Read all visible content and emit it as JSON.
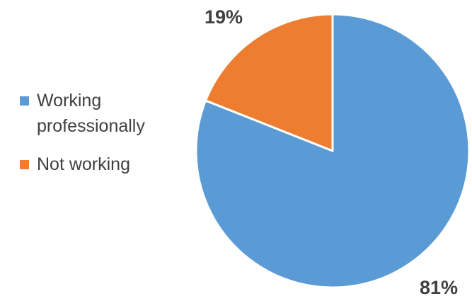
{
  "chart_data": {
    "type": "pie",
    "title": "",
    "categories": [
      "Working professionally",
      "Not working"
    ],
    "values": [
      81,
      19
    ],
    "unit": "%",
    "data_labels": [
      "81%",
      "19%"
    ],
    "colors": [
      "#5B9BD5",
      "#ED7D31"
    ],
    "start_angle_deg": 0,
    "direction": "clockwise",
    "legend": {
      "placement": "left",
      "entries": [
        "Working professionally",
        "Not working"
      ]
    }
  }
}
